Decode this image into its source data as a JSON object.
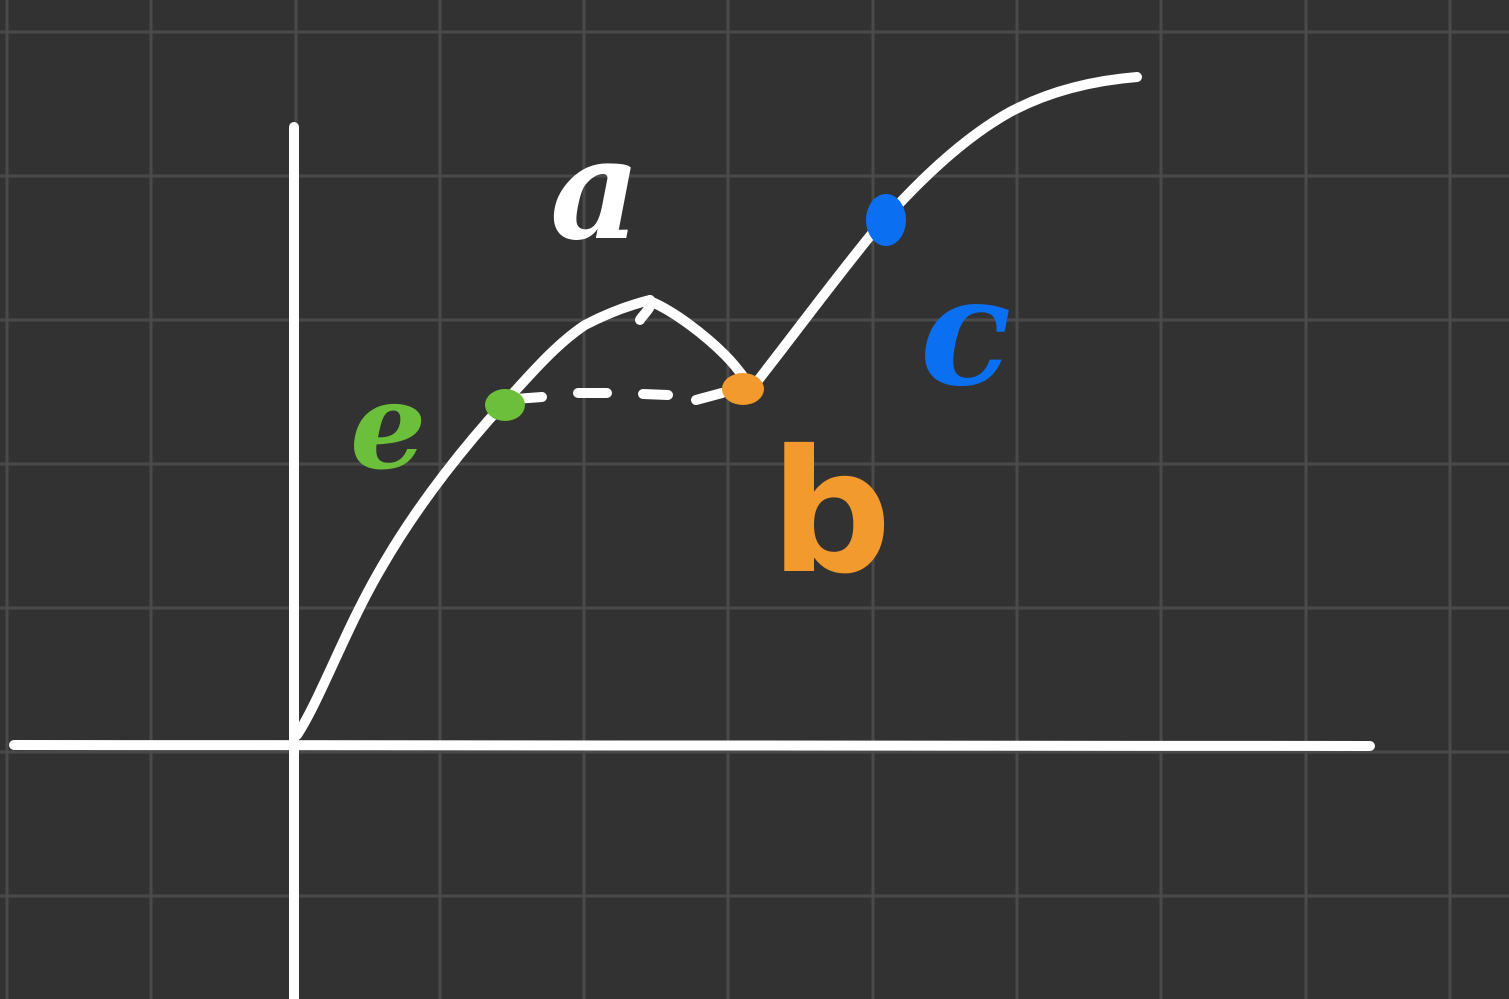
{
  "colors": {
    "background": "#323232",
    "grid": "#4a4a4a",
    "stroke": "#ffffff",
    "label_a": "#ffffff",
    "point_b": "#f29a2e",
    "point_c": "#0a6ff0",
    "point_e": "#6cbf3a"
  },
  "labels": {
    "a": "a",
    "b": "b",
    "c": "c",
    "e": "e"
  }
}
